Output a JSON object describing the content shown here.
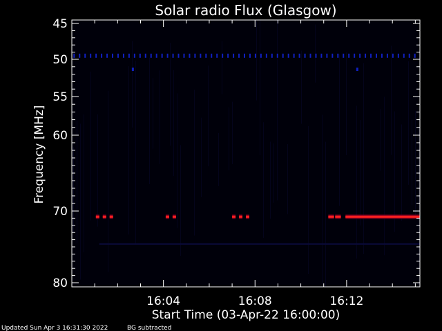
{
  "chart_data": {
    "type": "heatmap",
    "title": "Solar radio Flux (Glasgow)",
    "xlabel": "Start Time (03-Apr-22 16:00:00)",
    "ylabel": "Frequency [MHz]",
    "x_unit": "minutes after 16:00:00",
    "xlim": [
      0.0,
      15.2
    ],
    "ylim": [
      45,
      80
    ],
    "x_ticks": [
      {
        "value": 4,
        "label": "16:04"
      },
      {
        "value": 8,
        "label": "16:08"
      },
      {
        "value": 12,
        "label": "16:12"
      }
    ],
    "y_ticks": [
      {
        "value": 45,
        "label": "45"
      },
      {
        "value": 50,
        "label": "50"
      },
      {
        "value": 55,
        "label": "55"
      },
      {
        "value": 60,
        "label": "60"
      },
      {
        "value": 70,
        "label": "70"
      },
      {
        "value": 80,
        "label": "80"
      }
    ],
    "background_color": "#00000a",
    "features": [
      {
        "name": "dots",
        "frequency_mhz": 49.5,
        "color": "#1020c0",
        "x_start": 0.0,
        "x_end": 15.2,
        "spacing": 0.24
      },
      {
        "name": "dots",
        "frequency_mhz": 51.3,
        "color": "#1020c0",
        "times": [
          2.65,
          12.45
        ]
      },
      {
        "name": "segments",
        "frequency_mhz": 70.8,
        "color": "#ff2020",
        "segments": [
          [
            1.05,
            1.2
          ],
          [
            1.35,
            1.5
          ],
          [
            1.65,
            1.8
          ],
          [
            4.1,
            4.25
          ],
          [
            4.4,
            4.55
          ],
          [
            7.0,
            7.15
          ],
          [
            7.3,
            7.45
          ],
          [
            7.6,
            7.75
          ],
          [
            11.2,
            11.45
          ],
          [
            11.5,
            11.75
          ],
          [
            11.95,
            15.2
          ]
        ]
      },
      {
        "name": "faint-band",
        "frequency_mhz": 74.6,
        "color": "#0a0a3a",
        "x_start": 1.2,
        "x_end": 15.2
      }
    ]
  },
  "footer": {
    "updated": "Updated Sun Apr  3 16:31:30 2022",
    "bg_note": "BG subtracted"
  }
}
